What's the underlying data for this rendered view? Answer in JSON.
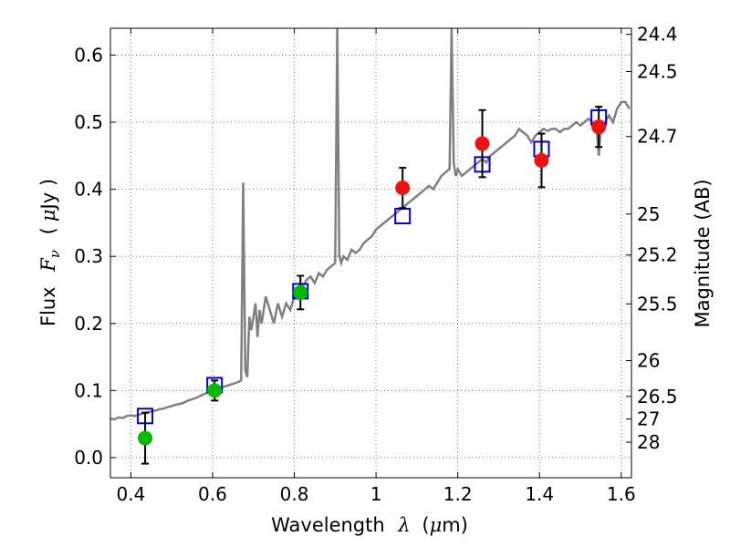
{
  "chart_data": {
    "type": "scatter",
    "xlabel_text": "Wavelength",
    "xlabel_symbol": "λ",
    "xlabel_unit_open": "(",
    "xlabel_unit_mu": "μ",
    "xlabel_unit_rest": "m)",
    "ylabel_text": "Flux",
    "ylabel_symbol": "F",
    "ylabel_subscript": "ν",
    "ylabel_unit_open": "(",
    "ylabel_unit_mu": "μ",
    "ylabel_unit_rest": "Jy )",
    "y2label": "Magnitude (AB)",
    "xlim": [
      0.35,
      1.625
    ],
    "ylim": [
      -0.03,
      0.64
    ],
    "grid": true,
    "x_ticks": [
      {
        "value": 0.4,
        "label": "0.4"
      },
      {
        "value": 0.6,
        "label": "0.6"
      },
      {
        "value": 0.8,
        "label": "0.8"
      },
      {
        "value": 1.0,
        "label": "1"
      },
      {
        "value": 1.2,
        "label": "1.2"
      },
      {
        "value": 1.4,
        "label": "1.4"
      },
      {
        "value": 1.6,
        "label": "1.6"
      }
    ],
    "y_ticks": [
      {
        "value": 0.0,
        "label": "0.0"
      },
      {
        "value": 0.1,
        "label": "0.1"
      },
      {
        "value": 0.2,
        "label": "0.2"
      },
      {
        "value": 0.3,
        "label": "0.3"
      },
      {
        "value": 0.4,
        "label": "0.4"
      },
      {
        "value": 0.5,
        "label": "0.5"
      },
      {
        "value": 0.6,
        "label": "0.6"
      }
    ],
    "y2_ticks": [
      {
        "mag": 24.4,
        "label": "24.4"
      },
      {
        "mag": 24.5,
        "label": "24.5"
      },
      {
        "mag": 24.7,
        "label": "24.7"
      },
      {
        "mag": 25.0,
        "label": "25"
      },
      {
        "mag": 25.2,
        "label": "25.2"
      },
      {
        "mag": 25.5,
        "label": "25.5"
      },
      {
        "mag": 26.0,
        "label": "26"
      },
      {
        "mag": 26.5,
        "label": "26.5"
      },
      {
        "mag": 27.0,
        "label": "27"
      },
      {
        "mag": 28.0,
        "label": "28"
      }
    ],
    "series": [
      {
        "kind": "line",
        "color": "#808080",
        "points": [
          [
            0.35,
            0.058
          ],
          [
            0.36,
            0.057
          ],
          [
            0.37,
            0.06
          ],
          [
            0.38,
            0.059
          ],
          [
            0.39,
            0.062
          ],
          [
            0.4,
            0.063
          ],
          [
            0.41,
            0.062
          ],
          [
            0.42,
            0.064
          ],
          [
            0.43,
            0.066
          ],
          [
            0.44,
            0.067
          ],
          [
            0.45,
            0.069
          ],
          [
            0.46,
            0.07
          ],
          [
            0.47,
            0.072
          ],
          [
            0.48,
            0.073
          ],
          [
            0.49,
            0.075
          ],
          [
            0.5,
            0.077
          ],
          [
            0.51,
            0.079
          ],
          [
            0.52,
            0.08
          ],
          [
            0.53,
            0.082
          ],
          [
            0.54,
            0.085
          ],
          [
            0.55,
            0.087
          ],
          [
            0.56,
            0.089
          ],
          [
            0.57,
            0.092
          ],
          [
            0.58,
            0.095
          ],
          [
            0.59,
            0.097
          ],
          [
            0.6,
            0.1
          ],
          [
            0.61,
            0.102
          ],
          [
            0.62,
            0.104
          ],
          [
            0.63,
            0.106
          ],
          [
            0.64,
            0.108
          ],
          [
            0.65,
            0.11
          ],
          [
            0.66,
            0.112
          ],
          [
            0.67,
            0.115
          ],
          [
            0.675,
            0.41
          ],
          [
            0.68,
            0.13
          ],
          [
            0.685,
            0.12
          ],
          [
            0.69,
            0.21
          ],
          [
            0.695,
            0.19
          ],
          [
            0.7,
            0.21
          ],
          [
            0.705,
            0.23
          ],
          [
            0.71,
            0.18
          ],
          [
            0.715,
            0.22
          ],
          [
            0.72,
            0.2
          ],
          [
            0.73,
            0.24
          ],
          [
            0.74,
            0.22
          ],
          [
            0.75,
            0.2
          ],
          [
            0.76,
            0.23
          ],
          [
            0.77,
            0.21
          ],
          [
            0.78,
            0.23
          ],
          [
            0.79,
            0.22
          ],
          [
            0.8,
            0.24
          ],
          [
            0.81,
            0.25
          ],
          [
            0.82,
            0.255
          ],
          [
            0.83,
            0.265
          ],
          [
            0.84,
            0.27
          ],
          [
            0.85,
            0.26
          ],
          [
            0.86,
            0.275
          ],
          [
            0.87,
            0.27
          ],
          [
            0.88,
            0.28
          ],
          [
            0.89,
            0.285
          ],
          [
            0.9,
            0.29
          ],
          [
            0.905,
            0.64
          ],
          [
            0.91,
            0.3
          ],
          [
            0.915,
            0.29
          ],
          [
            0.92,
            0.3
          ],
          [
            0.93,
            0.295
          ],
          [
            0.94,
            0.31
          ],
          [
            0.95,
            0.305
          ],
          [
            0.96,
            0.31
          ],
          [
            0.97,
            0.32
          ],
          [
            0.98,
            0.325
          ],
          [
            0.99,
            0.33
          ],
          [
            1.0,
            0.34
          ],
          [
            1.01,
            0.345
          ],
          [
            1.02,
            0.35
          ],
          [
            1.03,
            0.355
          ],
          [
            1.04,
            0.36
          ],
          [
            1.05,
            0.365
          ],
          [
            1.06,
            0.37
          ],
          [
            1.07,
            0.375
          ],
          [
            1.08,
            0.38
          ],
          [
            1.09,
            0.385
          ],
          [
            1.1,
            0.39
          ],
          [
            1.11,
            0.395
          ],
          [
            1.12,
            0.4
          ],
          [
            1.13,
            0.405
          ],
          [
            1.14,
            0.4
          ],
          [
            1.15,
            0.41
          ],
          [
            1.16,
            0.42
          ],
          [
            1.17,
            0.425
          ],
          [
            1.18,
            0.43
          ],
          [
            1.185,
            0.64
          ],
          [
            1.19,
            0.44
          ],
          [
            1.195,
            0.42
          ],
          [
            1.2,
            0.43
          ],
          [
            1.21,
            0.42
          ],
          [
            1.22,
            0.425
          ],
          [
            1.23,
            0.43
          ],
          [
            1.24,
            0.435
          ],
          [
            1.25,
            0.44
          ],
          [
            1.26,
            0.445
          ],
          [
            1.27,
            0.44
          ],
          [
            1.28,
            0.45
          ],
          [
            1.29,
            0.455
          ],
          [
            1.3,
            0.46
          ],
          [
            1.31,
            0.465
          ],
          [
            1.32,
            0.47
          ],
          [
            1.33,
            0.475
          ],
          [
            1.34,
            0.48
          ],
          [
            1.35,
            0.49
          ],
          [
            1.36,
            0.485
          ],
          [
            1.37,
            0.48
          ],
          [
            1.38,
            0.47
          ],
          [
            1.39,
            0.48
          ],
          [
            1.4,
            0.485
          ],
          [
            1.41,
            0.49
          ],
          [
            1.42,
            0.487
          ],
          [
            1.43,
            0.49
          ],
          [
            1.44,
            0.49
          ],
          [
            1.45,
            0.485
          ],
          [
            1.46,
            0.49
          ],
          [
            1.47,
            0.49
          ],
          [
            1.48,
            0.495
          ],
          [
            1.49,
            0.5
          ],
          [
            1.5,
            0.495
          ],
          [
            1.51,
            0.5
          ],
          [
            1.52,
            0.505
          ],
          [
            1.53,
            0.5
          ],
          [
            1.54,
            0.49
          ],
          [
            1.545,
            0.45
          ],
          [
            1.55,
            0.49
          ],
          [
            1.56,
            0.5
          ],
          [
            1.57,
            0.51
          ],
          [
            1.58,
            0.5
          ],
          [
            1.59,
            0.52
          ],
          [
            1.6,
            0.53
          ],
          [
            1.61,
            0.53
          ],
          [
            1.62,
            0.52
          ]
        ]
      },
      {
        "kind": "markers",
        "marker": "square-open",
        "color": "#0000cc",
        "points": [
          [
            0.435,
            0.062
          ],
          [
            0.605,
            0.108
          ],
          [
            0.815,
            0.248
          ],
          [
            1.065,
            0.36
          ],
          [
            1.26,
            0.437
          ],
          [
            1.405,
            0.46
          ],
          [
            1.545,
            0.507
          ]
        ]
      },
      {
        "kind": "markers",
        "marker": "circle",
        "color": "#00bb00",
        "points": [
          [
            0.435,
            0.029,
            0.038
          ],
          [
            0.605,
            0.1,
            0.015
          ],
          [
            0.815,
            0.246,
            0.025
          ]
        ]
      },
      {
        "kind": "markers",
        "marker": "circle",
        "color": "#ee1111",
        "points": [
          [
            1.065,
            0.402,
            0.03
          ],
          [
            1.26,
            0.468,
            0.05
          ],
          [
            1.405,
            0.443,
            0.04
          ],
          [
            1.545,
            0.493,
            0.03
          ]
        ]
      }
    ]
  }
}
